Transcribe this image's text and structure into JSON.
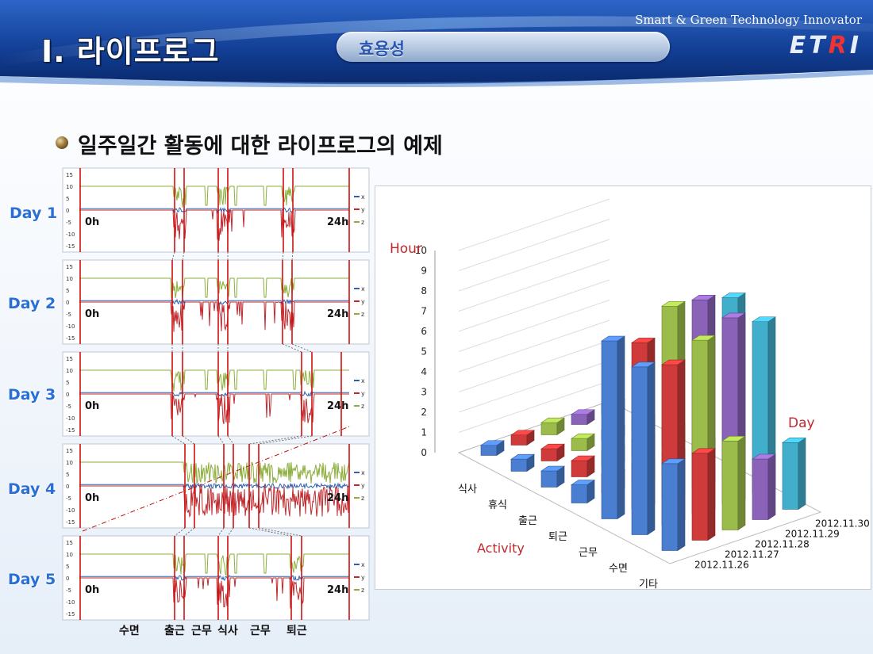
{
  "header": {
    "title": "I. 라이프로그",
    "section_pill": "효용성",
    "tagline": "Smart & Green Technology Innovator",
    "logo": "ETRI",
    "colors": {
      "banner_dark": "#0a2a6e",
      "banner_light": "#2f6fd0",
      "pill_text": "#2a55b0"
    }
  },
  "bullet": {
    "text": "일주일간 활동에 대한 라이프로그의 예제"
  },
  "accelerometer": {
    "days": [
      "Day 1",
      "Day 2",
      "Day 3",
      "Day 4",
      "Day 5"
    ],
    "yticks": [
      "15",
      "10",
      "5",
      "0",
      "-5",
      "-10",
      "-15"
    ],
    "legend": [
      "x",
      "y",
      "z"
    ],
    "start_label": "0h",
    "end_label": "24h",
    "activity_labels": [
      "수면",
      "출근",
      "근무",
      "식사",
      "근무",
      "퇴근"
    ],
    "colors": {
      "x": "#2e5fb0",
      "y": "#c0282d",
      "z": "#8aae3a",
      "marker": "#d01010"
    }
  },
  "chart_data": [
    {
      "type": "line",
      "title": "",
      "series": [
        {
          "name": "x"
        },
        {
          "name": "y"
        },
        {
          "name": "z"
        }
      ],
      "ylim": [
        -15,
        15
      ],
      "xlabel": "",
      "ylabel": "",
      "x_range_labels": [
        "0h",
        "24h"
      ],
      "rows": [
        "Day 1",
        "Day 2",
        "Day 3",
        "Day 4",
        "Day 5"
      ]
    },
    {
      "type": "bar",
      "subtype": "3d-column",
      "ylabel": "Hour",
      "xlabel": "Activity",
      "zlabel": "Day",
      "ylim": [
        0,
        10
      ],
      "yticks": [
        0,
        1,
        2,
        3,
        4,
        5,
        6,
        7,
        8,
        9,
        10
      ],
      "categories": [
        "식사",
        "휴식",
        "출근",
        "퇴근",
        "근무",
        "수면",
        "기타"
      ],
      "series": [
        {
          "name": "2012.11.26",
          "color": "#4a7ed0",
          "values": [
            0.5,
            0.6,
            0.8,
            0.9,
            8.8,
            8.3,
            4.3
          ]
        },
        {
          "name": "2012.11.27",
          "color": "#cf3a3a",
          "values": [
            0.5,
            0.6,
            0.8,
            0.9,
            8.2,
            7.9,
            4.3
          ]
        },
        {
          "name": "2012.11.28",
          "color": "#9bbb4a",
          "values": [
            0.6,
            0.6,
            0.8,
            0.9,
            9.5,
            8.6,
            4.4
          ]
        },
        {
          "name": "2012.11.29",
          "color": "#8a62b8",
          "values": [
            0.5,
            0.5,
            0.8,
            0.9,
            9.3,
            9.2,
            3.0
          ]
        },
        {
          "name": "2012.11.30",
          "color": "#41aecb",
          "values": [
            0.5,
            0.5,
            0.8,
            0.9,
            8.9,
            8.5,
            3.3
          ]
        }
      ]
    }
  ]
}
